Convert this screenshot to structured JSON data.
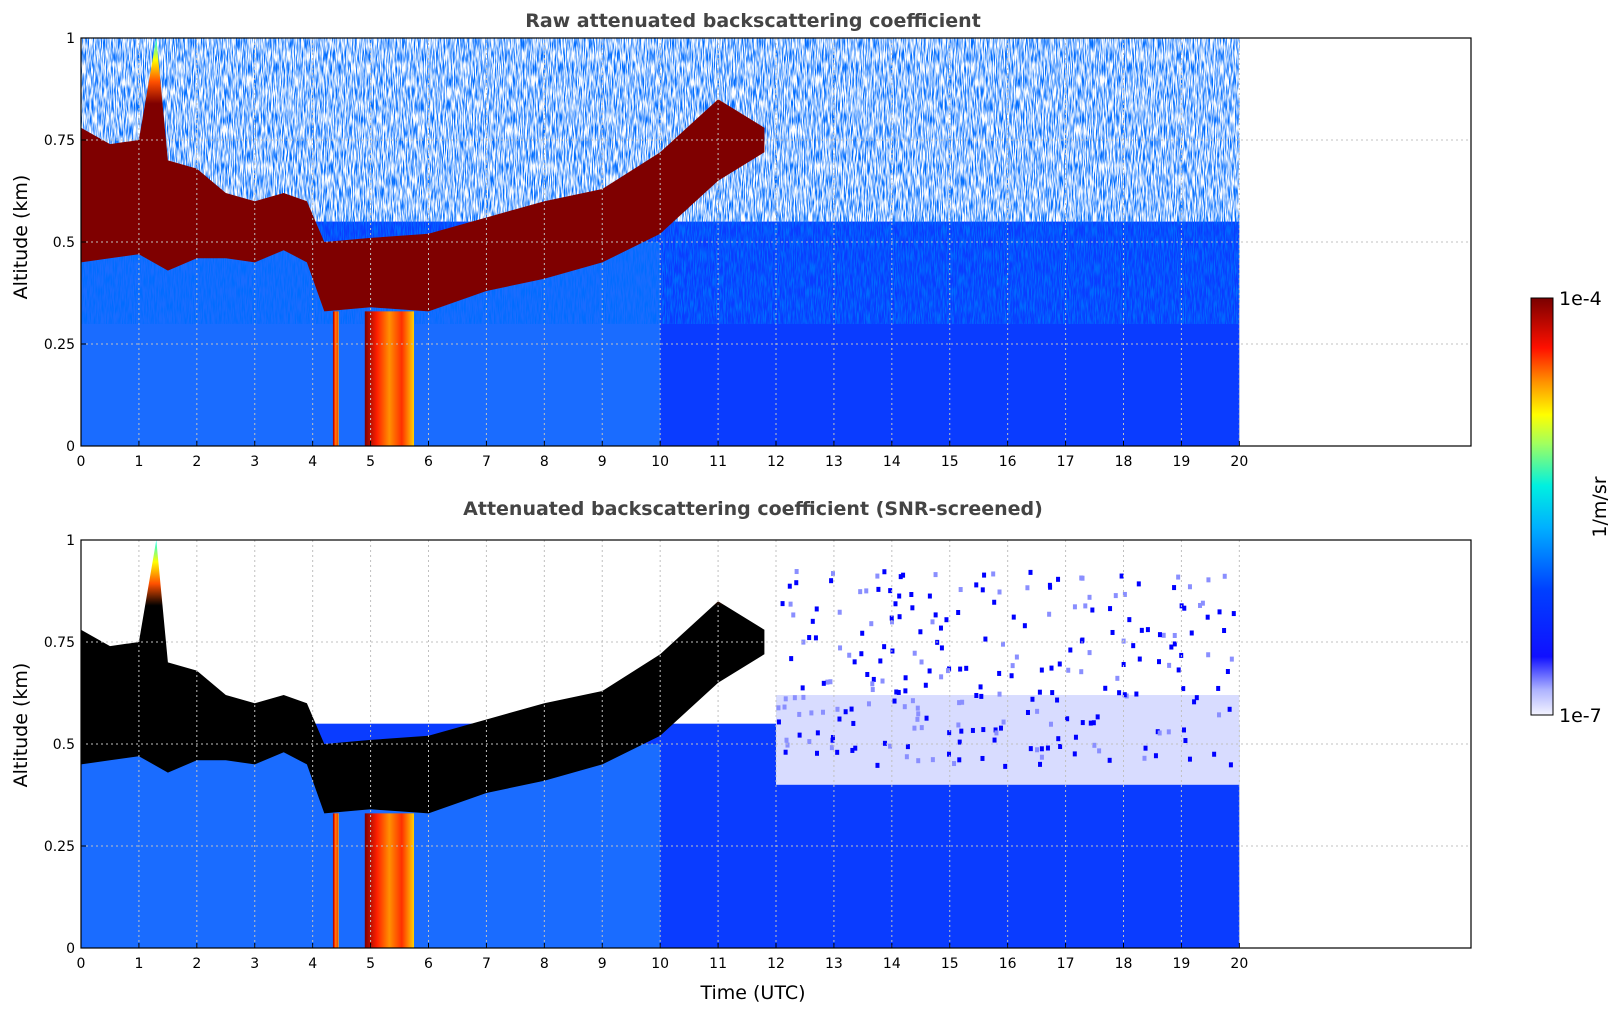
{
  "colors": {
    "frame": "#000000",
    "grid": "#c0c0c0",
    "title": "#444444",
    "jet": [
      "#00007f",
      "#0000ff",
      "#007fff",
      "#00ffff",
      "#7fff7f",
      "#ffff00",
      "#ff7f00",
      "#ff0000",
      "#7f0000"
    ],
    "cloud_core_screened": "#000000"
  },
  "chart_data": [
    {
      "type": "heatmap",
      "title": "Raw attenuated backscattering coefficient",
      "xlabel": "",
      "ylabel": "Altitude (km)",
      "xlim": [
        0,
        24
      ],
      "ylim": [
        0,
        1
      ],
      "xticks": [
        "0",
        "1",
        "2",
        "3",
        "4",
        "5",
        "6",
        "7",
        "8",
        "9",
        "10",
        "11",
        "12",
        "13",
        "14",
        "15",
        "16",
        "17",
        "18",
        "19",
        "20"
      ],
      "yticks": [
        "0",
        "0.25",
        "0.5",
        "0.75",
        "1"
      ],
      "grid": true,
      "data_extent_x": [
        0,
        20
      ],
      "cloud_base_km": {
        "x": [
          0,
          0.5,
          1,
          1.5,
          2,
          2.5,
          3,
          3.5,
          3.9,
          4.2,
          5,
          6,
          7,
          8,
          9,
          10,
          11,
          11.8
        ],
        "y": [
          0.45,
          0.46,
          0.47,
          0.43,
          0.46,
          0.46,
          0.45,
          0.48,
          0.45,
          0.33,
          0.34,
          0.33,
          0.38,
          0.41,
          0.45,
          0.52,
          0.65,
          0.72
        ]
      },
      "cloud_top_km": {
        "x": [
          0,
          0.5,
          1,
          1.3,
          1.5,
          2,
          2.5,
          3,
          3.5,
          3.9,
          4.2,
          5,
          6,
          7,
          8,
          9,
          10,
          11,
          11.8
        ],
        "y": [
          0.78,
          0.74,
          0.75,
          1.0,
          0.7,
          0.68,
          0.62,
          0.6,
          0.62,
          0.6,
          0.5,
          0.51,
          0.52,
          0.56,
          0.6,
          0.63,
          0.72,
          0.85,
          0.78
        ]
      },
      "precipitation_shafts_utc": [
        [
          4.35,
          4.45
        ],
        [
          4.9,
          5.75
        ]
      ]
    },
    {
      "type": "heatmap",
      "title": "Attenuated backscattering coefficient (SNR-screened)",
      "xlabel": "Time (UTC)",
      "ylabel": "Altitude (km)",
      "xlim": [
        0,
        24
      ],
      "ylim": [
        0,
        1
      ],
      "xticks": [
        "0",
        "1",
        "2",
        "3",
        "4",
        "5",
        "6",
        "7",
        "8",
        "9",
        "10",
        "11",
        "12",
        "13",
        "14",
        "15",
        "16",
        "17",
        "18",
        "19",
        "20"
      ],
      "yticks": [
        "0",
        "0.25",
        "0.5",
        "0.75",
        "1"
      ],
      "grid": true,
      "data_extent_x": [
        0,
        20
      ]
    }
  ],
  "colorbar": {
    "label": "1/m/sr",
    "max_label": "1e-4",
    "min_label": "1e-7",
    "range": [
      1e-07,
      0.0001
    ],
    "scale": "log"
  }
}
